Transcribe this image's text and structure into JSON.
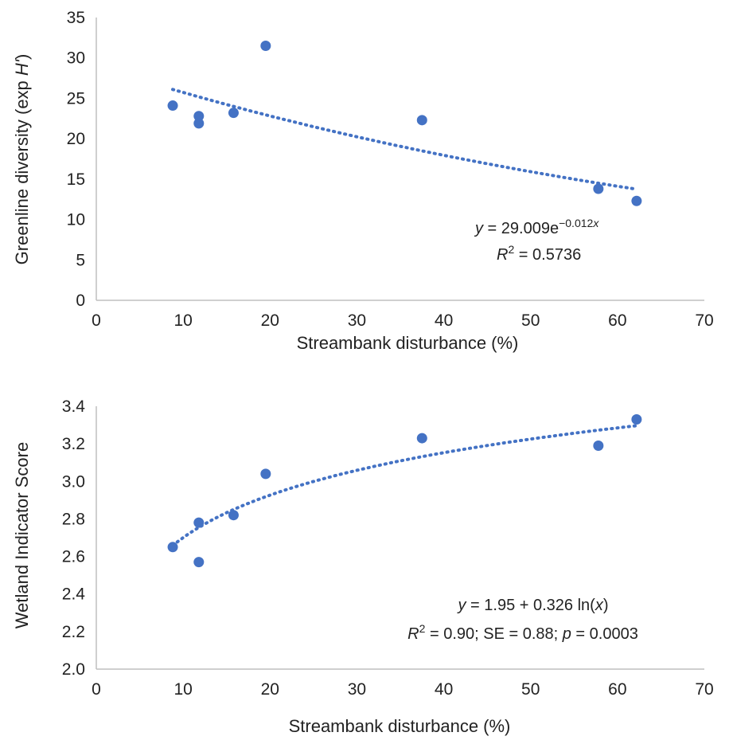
{
  "chart_data": [
    {
      "type": "scatter",
      "x": [
        8.8,
        11.8,
        11.8,
        15.8,
        19.5,
        37.5,
        57.8,
        62.2
      ],
      "y": [
        24.1,
        22.8,
        21.9,
        23.2,
        31.5,
        22.3,
        13.8,
        12.3
      ],
      "xlabel": "Streambank disturbance (%)",
      "ylabel_main": "Greenline diversity (exp ",
      "ylabel_italic": "H'",
      "ylabel_end": ")",
      "xlim": [
        0,
        70
      ],
      "ylim": [
        0,
        35
      ],
      "xticks": [
        "0",
        "10",
        "20",
        "30",
        "40",
        "50",
        "60",
        "70"
      ],
      "yticks": [
        "0",
        "5",
        "10",
        "15",
        "20",
        "25",
        "30",
        "35"
      ],
      "grid": false,
      "trendline": {
        "type": "exponential",
        "a": 29.009,
        "b": -0.012,
        "x_range": [
          8.8,
          62.2
        ]
      },
      "equation": {
        "y_var": "y",
        "main": " = 29.009e",
        "exponent_pre": "−0.012",
        "exponent_var": "x",
        "r2_label": "R",
        "r2_sup": "2",
        "r2_value": " = 0.5736"
      },
      "marker_color": "#4472C4"
    },
    {
      "type": "scatter",
      "x": [
        8.8,
        11.8,
        11.8,
        15.8,
        19.5,
        37.5,
        57.8,
        62.2
      ],
      "y": [
        2.65,
        2.78,
        2.57,
        2.82,
        3.04,
        3.23,
        3.19,
        3.33
      ],
      "xlabel": "Streambank disturbance (%)",
      "ylabel": "Wetland Indicator Score",
      "xlim": [
        0,
        70
      ],
      "ylim": [
        2.0,
        3.4
      ],
      "xticks": [
        "0",
        "10",
        "20",
        "30",
        "40",
        "50",
        "60",
        "70"
      ],
      "yticks": [
        "2.0",
        "2.2",
        "2.4",
        "2.6",
        "2.8",
        "3.0",
        "3.2",
        "3.4"
      ],
      "grid": false,
      "trendline": {
        "type": "logarithmic",
        "a": 1.95,
        "b": 0.326,
        "x_range": [
          8.8,
          62.2
        ]
      },
      "equation": {
        "line1_var": "y",
        "line1_mid": " = 1.95 + 0.326 ln(",
        "line1_x": "x",
        "line1_end": ")",
        "line2_r": "R",
        "line2_sup": "2",
        "line2_mid": " = 0.90; SE = 0.88; ",
        "line2_p": "p",
        "line2_end": " = 0.0003"
      },
      "marker_color": "#4472C4"
    }
  ]
}
